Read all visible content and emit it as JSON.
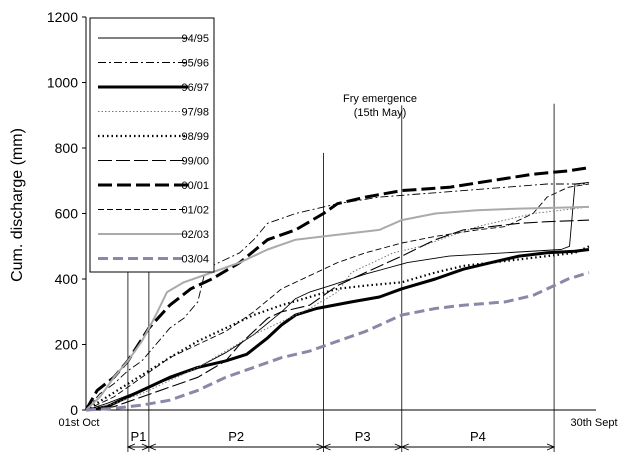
{
  "chart_data": {
    "type": "line",
    "xlabel": "",
    "ylabel": "Cum. discharge (mm)",
    "x_start_label": "01st Oct",
    "x_end_label": "30th Sept",
    "ylim": [
      0,
      1200
    ],
    "yticks": [
      0,
      200,
      400,
      600,
      800,
      1000,
      1200
    ],
    "xlim": [
      0,
      365
    ],
    "grid": false,
    "legend_position": "top-left",
    "annotation": {
      "line1": "Fry emergence",
      "line2": "(15th May)",
      "x": 226
    },
    "boundaries": [
      30,
      45,
      170,
      226,
      335
    ],
    "period_markers": [
      {
        "x": 45,
        "top": 510
      },
      {
        "x": 170,
        "top": 785
      },
      {
        "x": 226,
        "top": 930
      },
      {
        "x": 335,
        "top": 935
      }
    ],
    "periods": [
      {
        "label": "P1",
        "start": 30,
        "end": 45
      },
      {
        "label": "P2",
        "start": 45,
        "end": 170
      },
      {
        "label": "P3",
        "start": 170,
        "end": 226
      },
      {
        "label": "P4",
        "start": 226,
        "end": 335
      }
    ],
    "series": [
      {
        "name": "94/95",
        "color": "#000000",
        "width": 0.9,
        "dash": "",
        "points": [
          [
            0,
            0
          ],
          [
            15,
            20
          ],
          [
            30,
            45
          ],
          [
            45,
            70
          ],
          [
            60,
            95
          ],
          [
            80,
            130
          ],
          [
            100,
            175
          ],
          [
            120,
            230
          ],
          [
            140,
            300
          ],
          [
            150,
            340
          ],
          [
            160,
            360
          ],
          [
            175,
            380
          ],
          [
            200,
            415
          ],
          [
            230,
            450
          ],
          [
            260,
            470
          ],
          [
            300,
            480
          ],
          [
            340,
            490
          ],
          [
            346,
            500
          ],
          [
            350,
            690
          ],
          [
            360,
            695
          ]
        ]
      },
      {
        "name": "95/96",
        "color": "#000000",
        "width": 0.9,
        "dash": "8,3,2,3",
        "points": [
          [
            0,
            0
          ],
          [
            10,
            50
          ],
          [
            20,
            80
          ],
          [
            30,
            120
          ],
          [
            40,
            150
          ],
          [
            50,
            200
          ],
          [
            60,
            250
          ],
          [
            70,
            280
          ],
          [
            80,
            330
          ],
          [
            85,
            420
          ],
          [
            90,
            440
          ],
          [
            100,
            460
          ],
          [
            110,
            480
          ],
          [
            120,
            520
          ],
          [
            130,
            570
          ],
          [
            150,
            600
          ],
          [
            180,
            630
          ],
          [
            210,
            650
          ],
          [
            240,
            660
          ],
          [
            270,
            670
          ],
          [
            300,
            680
          ],
          [
            330,
            690
          ],
          [
            360,
            690
          ]
        ]
      },
      {
        "name": "96/97",
        "color": "#000000",
        "width": 3,
        "dash": "",
        "points": [
          [
            0,
            0
          ],
          [
            15,
            10
          ],
          [
            30,
            40
          ],
          [
            45,
            70
          ],
          [
            60,
            100
          ],
          [
            80,
            130
          ],
          [
            100,
            150
          ],
          [
            115,
            170
          ],
          [
            130,
            220
          ],
          [
            140,
            260
          ],
          [
            150,
            290
          ],
          [
            165,
            310
          ],
          [
            190,
            330
          ],
          [
            210,
            345
          ],
          [
            226,
            370
          ],
          [
            250,
            400
          ],
          [
            270,
            430
          ],
          [
            290,
            450
          ],
          [
            310,
            470
          ],
          [
            330,
            480
          ],
          [
            350,
            485
          ],
          [
            360,
            490
          ]
        ]
      },
      {
        "name": "97/98",
        "color": "#777777",
        "width": 1,
        "dash": "1.5,2",
        "points": [
          [
            0,
            0
          ],
          [
            20,
            20
          ],
          [
            40,
            50
          ],
          [
            60,
            90
          ],
          [
            80,
            130
          ],
          [
            100,
            180
          ],
          [
            120,
            230
          ],
          [
            140,
            270
          ],
          [
            160,
            310
          ],
          [
            180,
            360
          ],
          [
            190,
            420
          ],
          [
            200,
            440
          ],
          [
            220,
            480
          ],
          [
            240,
            500
          ],
          [
            260,
            530
          ],
          [
            280,
            560
          ],
          [
            300,
            580
          ],
          [
            320,
            600
          ],
          [
            340,
            610
          ],
          [
            360,
            620
          ]
        ]
      },
      {
        "name": "98/99",
        "color": "#000000",
        "width": 2.2,
        "dash": "1.5,3",
        "points": [
          [
            0,
            0
          ],
          [
            15,
            40
          ],
          [
            30,
            80
          ],
          [
            45,
            120
          ],
          [
            60,
            160
          ],
          [
            80,
            210
          ],
          [
            100,
            250
          ],
          [
            120,
            290
          ],
          [
            140,
            320
          ],
          [
            160,
            345
          ],
          [
            180,
            370
          ],
          [
            200,
            380
          ],
          [
            226,
            390
          ],
          [
            250,
            420
          ],
          [
            270,
            440
          ],
          [
            290,
            450
          ],
          [
            310,
            460
          ],
          [
            330,
            470
          ],
          [
            350,
            480
          ],
          [
            360,
            500
          ]
        ]
      },
      {
        "name": "99/00",
        "color": "#000000",
        "width": 1.1,
        "dash": "14,4",
        "points": [
          [
            0,
            0
          ],
          [
            20,
            10
          ],
          [
            40,
            40
          ],
          [
            60,
            70
          ],
          [
            80,
            100
          ],
          [
            100,
            150
          ],
          [
            110,
            200
          ],
          [
            120,
            240
          ],
          [
            130,
            280
          ],
          [
            140,
            300
          ],
          [
            160,
            320
          ],
          [
            180,
            380
          ],
          [
            200,
            420
          ],
          [
            226,
            470
          ],
          [
            250,
            520
          ],
          [
            270,
            550
          ],
          [
            290,
            560
          ],
          [
            310,
            570
          ],
          [
            330,
            575
          ],
          [
            360,
            580
          ]
        ]
      },
      {
        "name": "00/01",
        "color": "#000000",
        "width": 3,
        "dash": "14,5",
        "points": [
          [
            0,
            0
          ],
          [
            8,
            60
          ],
          [
            20,
            100
          ],
          [
            30,
            150
          ],
          [
            45,
            250
          ],
          [
            60,
            320
          ],
          [
            75,
            370
          ],
          [
            90,
            400
          ],
          [
            110,
            450
          ],
          [
            130,
            520
          ],
          [
            150,
            550
          ],
          [
            170,
            600
          ],
          [
            180,
            630
          ],
          [
            200,
            650
          ],
          [
            226,
            670
          ],
          [
            260,
            680
          ],
          [
            290,
            700
          ],
          [
            320,
            720
          ],
          [
            345,
            730
          ],
          [
            360,
            740
          ]
        ]
      },
      {
        "name": "01/02",
        "color": "#000000",
        "width": 0.9,
        "dash": "6,3",
        "points": [
          [
            0,
            0
          ],
          [
            20,
            40
          ],
          [
            40,
            100
          ],
          [
            60,
            160
          ],
          [
            80,
            200
          ],
          [
            100,
            240
          ],
          [
            120,
            300
          ],
          [
            140,
            370
          ],
          [
            160,
            410
          ],
          [
            180,
            450
          ],
          [
            200,
            480
          ],
          [
            226,
            510
          ],
          [
            250,
            530
          ],
          [
            280,
            550
          ],
          [
            300,
            560
          ],
          [
            320,
            600
          ],
          [
            330,
            650
          ],
          [
            345,
            680
          ],
          [
            360,
            690
          ]
        ]
      },
      {
        "name": "02/03",
        "color": "#aaaaaa",
        "width": 2,
        "dash": "",
        "points": [
          [
            0,
            0
          ],
          [
            10,
            40
          ],
          [
            20,
            100
          ],
          [
            30,
            150
          ],
          [
            40,
            210
          ],
          [
            50,
            290
          ],
          [
            58,
            360
          ],
          [
            70,
            390
          ],
          [
            90,
            420
          ],
          [
            110,
            450
          ],
          [
            130,
            490
          ],
          [
            150,
            520
          ],
          [
            170,
            530
          ],
          [
            200,
            545
          ],
          [
            210,
            550
          ],
          [
            226,
            580
          ],
          [
            250,
            600
          ],
          [
            280,
            610
          ],
          [
            310,
            615
          ],
          [
            340,
            618
          ],
          [
            360,
            620
          ]
        ]
      },
      {
        "name": "03/04",
        "color": "#8888a8",
        "width": 3,
        "dash": "10,5",
        "points": [
          [
            0,
            0
          ],
          [
            20,
            5
          ],
          [
            40,
            15
          ],
          [
            60,
            30
          ],
          [
            80,
            60
          ],
          [
            100,
            100
          ],
          [
            120,
            130
          ],
          [
            140,
            160
          ],
          [
            160,
            180
          ],
          [
            180,
            210
          ],
          [
            200,
            240
          ],
          [
            226,
            290
          ],
          [
            250,
            310
          ],
          [
            270,
            320
          ],
          [
            300,
            330
          ],
          [
            320,
            350
          ],
          [
            335,
            380
          ],
          [
            345,
            400
          ],
          [
            360,
            420
          ]
        ]
      }
    ]
  }
}
